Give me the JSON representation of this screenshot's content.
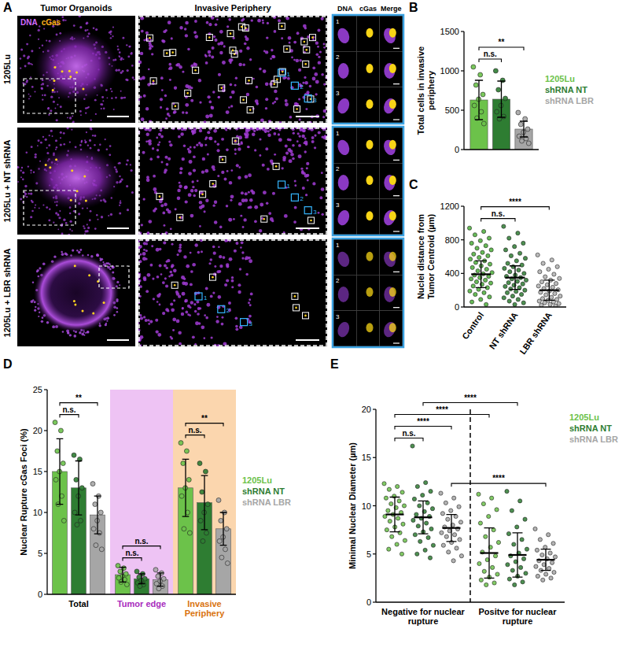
{
  "panel_a": {
    "panel": "A",
    "column_titles": [
      "Tumor Organoids",
      "Invasive Periphery"
    ],
    "inset_titles": [
      "DNA",
      "cGas",
      "Merge"
    ],
    "rows": [
      "1205Lu",
      "1205Lu + NT shRNA",
      "1205Lu + LBR shRNA"
    ],
    "stain_legend": [
      "DNA",
      "cGas"
    ],
    "inset_numbers": [
      "1",
      "2",
      "3"
    ]
  },
  "chart_data": [
    {
      "type": "bar",
      "panel": "B",
      "y_label": "Total cells in invasive periphery",
      "categories": [
        null
      ],
      "ylim": [
        0,
        1500
      ],
      "yticks": [
        0,
        500,
        1000,
        1500
      ],
      "legend": "right",
      "series": [
        {
          "name": "1205Lu",
          "color": "#6cc24a",
          "values": [
            630
          ],
          "errors": [
            250
          ],
          "points": [
            [
              1050,
              950,
              820,
              700,
              640,
              560,
              480,
              400,
              330
            ]
          ]
        },
        {
          "name": "shRNA NT",
          "color": "#2e7d32",
          "values": [
            640
          ],
          "errors": [
            230
          ],
          "points": [
            [
              1000,
              880,
              760,
              650,
              560,
              480,
              420,
              390
            ]
          ]
        },
        {
          "name": "shRNA LBR",
          "color": "#a6a6a6",
          "values": [
            260
          ],
          "errors": [
            100
          ],
          "points": [
            [
              470,
              390,
              320,
              260,
              220,
              170,
              140,
              110,
              80
            ]
          ]
        }
      ],
      "annotations": [
        {
          "text": "n.s.",
          "from": [
            0,
            0
          ],
          "to": [
            0,
            1
          ]
        },
        {
          "text": "**",
          "from": [
            0,
            0
          ],
          "to": [
            0,
            2
          ]
        }
      ]
    },
    {
      "type": "scatter",
      "panel": "C",
      "y_label": "Nuclei distance from Tumor Centroid (µm)",
      "categories": [
        "Control",
        "NT shRNA",
        "LBR shRNA"
      ],
      "ylim": [
        0,
        1200
      ],
      "yticks": [
        0,
        400,
        800,
        1200
      ],
      "series": [
        {
          "colors": [
            "#4caf3a",
            "#2e7d32",
            "#b0b0b0"
          ],
          "values": [
            390,
            350,
            200
          ],
          "errors": [
            160,
            140,
            120
          ],
          "points": [
            [
              940,
              900,
              860,
              820,
              790,
              760,
              730,
              700,
              680,
              650,
              630,
              610,
              590,
              570,
              550,
              530,
              510,
              490,
              470,
              450,
              430,
              410,
              395,
              380,
              365,
              350,
              335,
              320,
              300,
              285,
              270,
              250,
              230,
              210,
              190,
              170,
              150,
              120,
              90,
              60,
              30
            ],
            [
              960,
              880,
              820,
              760,
              720,
              680,
              640,
              610,
              580,
              550,
              520,
              500,
              480,
              460,
              440,
              420,
              400,
              380,
              365,
              350,
              335,
              320,
              305,
              290,
              275,
              260,
              245,
              230,
              215,
              200,
              185,
              170,
              150,
              130,
              110,
              90,
              70,
              50,
              30
            ],
            [
              620,
              560,
              520,
              480,
              450,
              420,
              390,
              360,
              340,
              320,
              300,
              280,
              265,
              250,
              235,
              220,
              205,
              190,
              175,
              160,
              145,
              130,
              115,
              100,
              90,
              80,
              70,
              60,
              50,
              40,
              30,
              20,
              10
            ]
          ]
        }
      ],
      "annotations": [
        {
          "text": "n.s.",
          "from": [
            0,
            0
          ],
          "to": [
            1,
            0
          ]
        },
        {
          "text": "****",
          "from": [
            0,
            0
          ],
          "to": [
            2,
            0
          ]
        }
      ]
    },
    {
      "type": "bar",
      "panel": "D",
      "y_label": "Nuclear Rupture cGas Foci (%)",
      "categories": [
        "Total",
        "Tumor edge",
        "Invasive Periphery"
      ],
      "ylim": [
        0,
        25
      ],
      "yticks": [
        0,
        5,
        10,
        15,
        20,
        25
      ],
      "legend": "right",
      "series": [
        {
          "name": "1205Lu",
          "color": "#6cc24a",
          "values": [
            15.0,
            2.4,
            13.0
          ],
          "errors": [
            4.0,
            0.9,
            3.5
          ],
          "points": [
            [
              21,
              20,
              17.5,
              16,
              15,
              14,
              12,
              11,
              9
            ],
            [
              3.5,
              3.2,
              2.8,
              2.5,
              2.2,
              2,
              1.8,
              1.5,
              1.2
            ],
            [
              18.5,
              17.5,
              16,
              14,
              13,
              12,
              10,
              8,
              7.5
            ]
          ]
        },
        {
          "name": "shRNA NT",
          "color": "#2e7d32",
          "values": [
            13.0,
            1.9,
            11.2
          ],
          "errors": [
            3.3,
            0.6,
            3.3
          ],
          "points": [
            [
              17,
              16.5,
              14,
              13,
              12,
              10,
              9,
              8.5
            ],
            [
              2.8,
              2.5,
              2.1,
              1.9,
              1.7,
              1.4,
              1.2,
              1.0
            ],
            [
              16,
              15,
              12.5,
              11,
              10,
              9,
              7.5,
              6.5
            ]
          ]
        },
        {
          "name": "shRNA LBR",
          "color": "#a6a6a6",
          "values": [
            9.7,
            1.8,
            8.0
          ],
          "errors": [
            2.3,
            0.8,
            2.0
          ],
          "points": [
            [
              13.5,
              12,
              11,
              10,
              9,
              8,
              7.5,
              6,
              5.5
            ],
            [
              3.0,
              2.6,
              2.2,
              1.9,
              1.6,
              1.3,
              1.0,
              0.7
            ],
            [
              11.5,
              10,
              9,
              8,
              7,
              6.5,
              5.5,
              4.5,
              3.8
            ]
          ]
        }
      ],
      "annotations": [
        {
          "text": "n.s.",
          "from": [
            0,
            0
          ],
          "to": [
            0,
            1
          ]
        },
        {
          "text": "**",
          "from": [
            0,
            0
          ],
          "to": [
            0,
            2
          ]
        },
        {
          "text": "n.s.",
          "from": [
            1,
            0
          ],
          "to": [
            1,
            1
          ]
        },
        {
          "text": "n.s.",
          "from": [
            1,
            0
          ],
          "to": [
            1,
            2
          ]
        },
        {
          "text": "n.s.",
          "from": [
            2,
            0
          ],
          "to": [
            2,
            1
          ]
        },
        {
          "text": "**",
          "from": [
            2,
            0
          ],
          "to": [
            2,
            2
          ]
        }
      ]
    },
    {
      "type": "scatter",
      "panel": "E",
      "y_label": "Minimal Nuclear Diameter (µm)",
      "categories": [
        "Negative for nuclear rupture",
        "Positve for nuclear rupture"
      ],
      "ylim": [
        0,
        20
      ],
      "yticks": [
        0,
        5,
        10,
        15,
        20
      ],
      "legend": "upper right",
      "series": [
        {
          "name": "1205Lu",
          "color": "#6cc24a",
          "values": [
            9.1,
            5.1
          ],
          "errors": [
            1.8,
            2.6
          ],
          "points": [
            [
              12.3,
              12,
              11.7,
              11.4,
              11,
              10.8,
              10.5,
              10.2,
              10,
              9.8,
              9.5,
              9.3,
              9.1,
              8.9,
              8.7,
              8.4,
              8.1,
              7.8,
              7.5,
              7.2,
              6.8,
              6.4,
              6,
              5.5,
              5
            ],
            [
              11.2,
              10.8,
              10.2,
              9.6,
              8.9,
              8.2,
              7.5,
              6.8,
              6.2,
              5.7,
              5.2,
              4.8,
              4.4,
              4,
              3.6,
              3.2,
              2.9,
              2.6,
              2.3,
              2,
              1.8
            ]
          ]
        },
        {
          "name": "shRNA NT",
          "color": "#2e7d32",
          "values": [
            8.8,
            4.9
          ],
          "errors": [
            1.7,
            2.3
          ],
          "points": [
            [
              16.2,
              12.4,
              12,
              11.5,
              11.1,
              10.7,
              10.3,
              10,
              9.7,
              9.4,
              9.1,
              8.9,
              8.7,
              8.5,
              8.2,
              7.9,
              7.6,
              7.3,
              7,
              6.7,
              6.3,
              5.9,
              5.4,
              5,
              4.6
            ],
            [
              11.5,
              10.5,
              9.5,
              8.6,
              7.8,
              7.1,
              6.5,
              6,
              5.5,
              5.1,
              4.8,
              4.5,
              4.2,
              3.9,
              3.6,
              3.3,
              3,
              2.7,
              2.4,
              2.1,
              1.8
            ]
          ]
        },
        {
          "name": "shRNA LBR",
          "color": "#a6a6a6",
          "values": [
            7.7,
            4.4
          ],
          "errors": [
            1.4,
            1.1
          ],
          "points": [
            [
              11.3,
              10.8,
              10.3,
              9.9,
              9.5,
              9.2,
              8.9,
              8.6,
              8.3,
              8,
              7.8,
              7.6,
              7.4,
              7.2,
              7,
              6.8,
              6.5,
              6.2,
              5.9,
              5.6,
              5.2,
              4.8,
              4.3
            ],
            [
              7.6,
              7,
              6.5,
              6.1,
              5.7,
              5.4,
              5.1,
              4.9,
              4.7,
              4.5,
              4.3,
              4.1,
              3.9,
              3.7,
              3.5,
              3.3,
              3.1,
              2.9,
              2.7,
              2.5,
              2.3
            ]
          ]
        }
      ],
      "annotations": [
        {
          "text": "n.s.",
          "from": [
            0,
            0
          ],
          "to": [
            0,
            1
          ]
        },
        {
          "text": "****",
          "from": [
            0,
            0
          ],
          "to": [
            0,
            2
          ]
        },
        {
          "text": "****",
          "from": [
            0,
            0
          ],
          "to": [
            1,
            0
          ]
        },
        {
          "text": "****",
          "from": [
            0,
            1
          ],
          "to": [
            1,
            1
          ]
        },
        {
          "text": "****",
          "from": [
            0,
            2
          ],
          "to": [
            1,
            2
          ]
        }
      ]
    }
  ]
}
